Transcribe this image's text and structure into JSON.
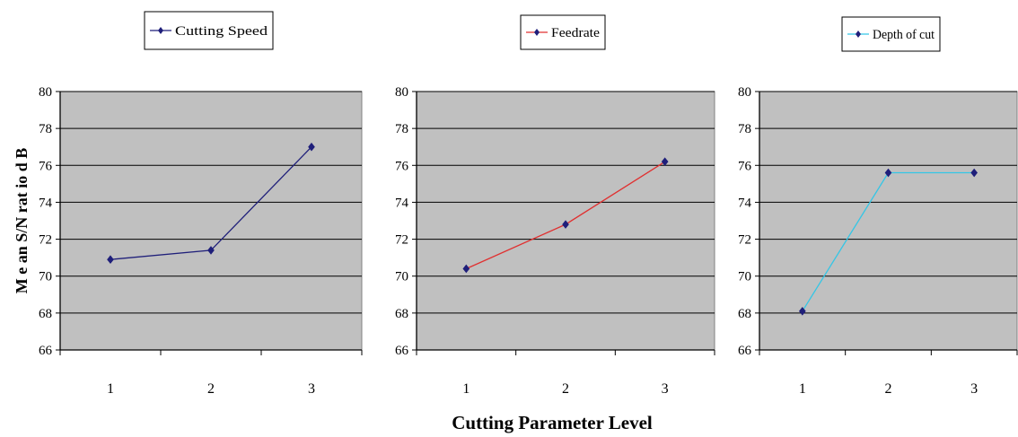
{
  "chart_data": [
    {
      "type": "line",
      "categories": [
        "1",
        "2",
        "3"
      ],
      "series": [
        {
          "name": "Cutting Speed",
          "values": [
            70.9,
            71.4,
            77.0
          ],
          "color": "#1f1f7a"
        }
      ],
      "ylim": [
        66,
        80
      ],
      "yticks": [
        "66",
        "68",
        "70",
        "72",
        "74",
        "76",
        "78",
        "80"
      ],
      "ylabel": "M e an  S/N  rat io  d B",
      "grid": true,
      "plot_background": "#c0c0c0",
      "legend_position": "top"
    },
    {
      "type": "line",
      "categories": [
        "1",
        "2",
        "3"
      ],
      "series": [
        {
          "name": "Feedrate",
          "values": [
            70.4,
            72.8,
            76.2
          ],
          "color": "#e03030",
          "marker_color": "#1f1f7a"
        }
      ],
      "ylim": [
        66,
        80
      ],
      "yticks": [
        "66",
        "68",
        "70",
        "72",
        "74",
        "76",
        "78",
        "80"
      ],
      "grid": true,
      "plot_background": "#c0c0c0",
      "legend_position": "top"
    },
    {
      "type": "line",
      "categories": [
        "1",
        "2",
        "3"
      ],
      "series": [
        {
          "name": "Depth of cut",
          "values": [
            68.1,
            75.6,
            75.6
          ],
          "color": "#33c6e6",
          "marker_color": "#1f1f7a"
        }
      ],
      "ylim": [
        66,
        80
      ],
      "yticks": [
        "66",
        "68",
        "70",
        "72",
        "74",
        "76",
        "78",
        "80"
      ],
      "grid": true,
      "plot_background": "#c0c0c0",
      "legend_position": "top"
    }
  ],
  "xlabel": "Cutting Parameter Level"
}
